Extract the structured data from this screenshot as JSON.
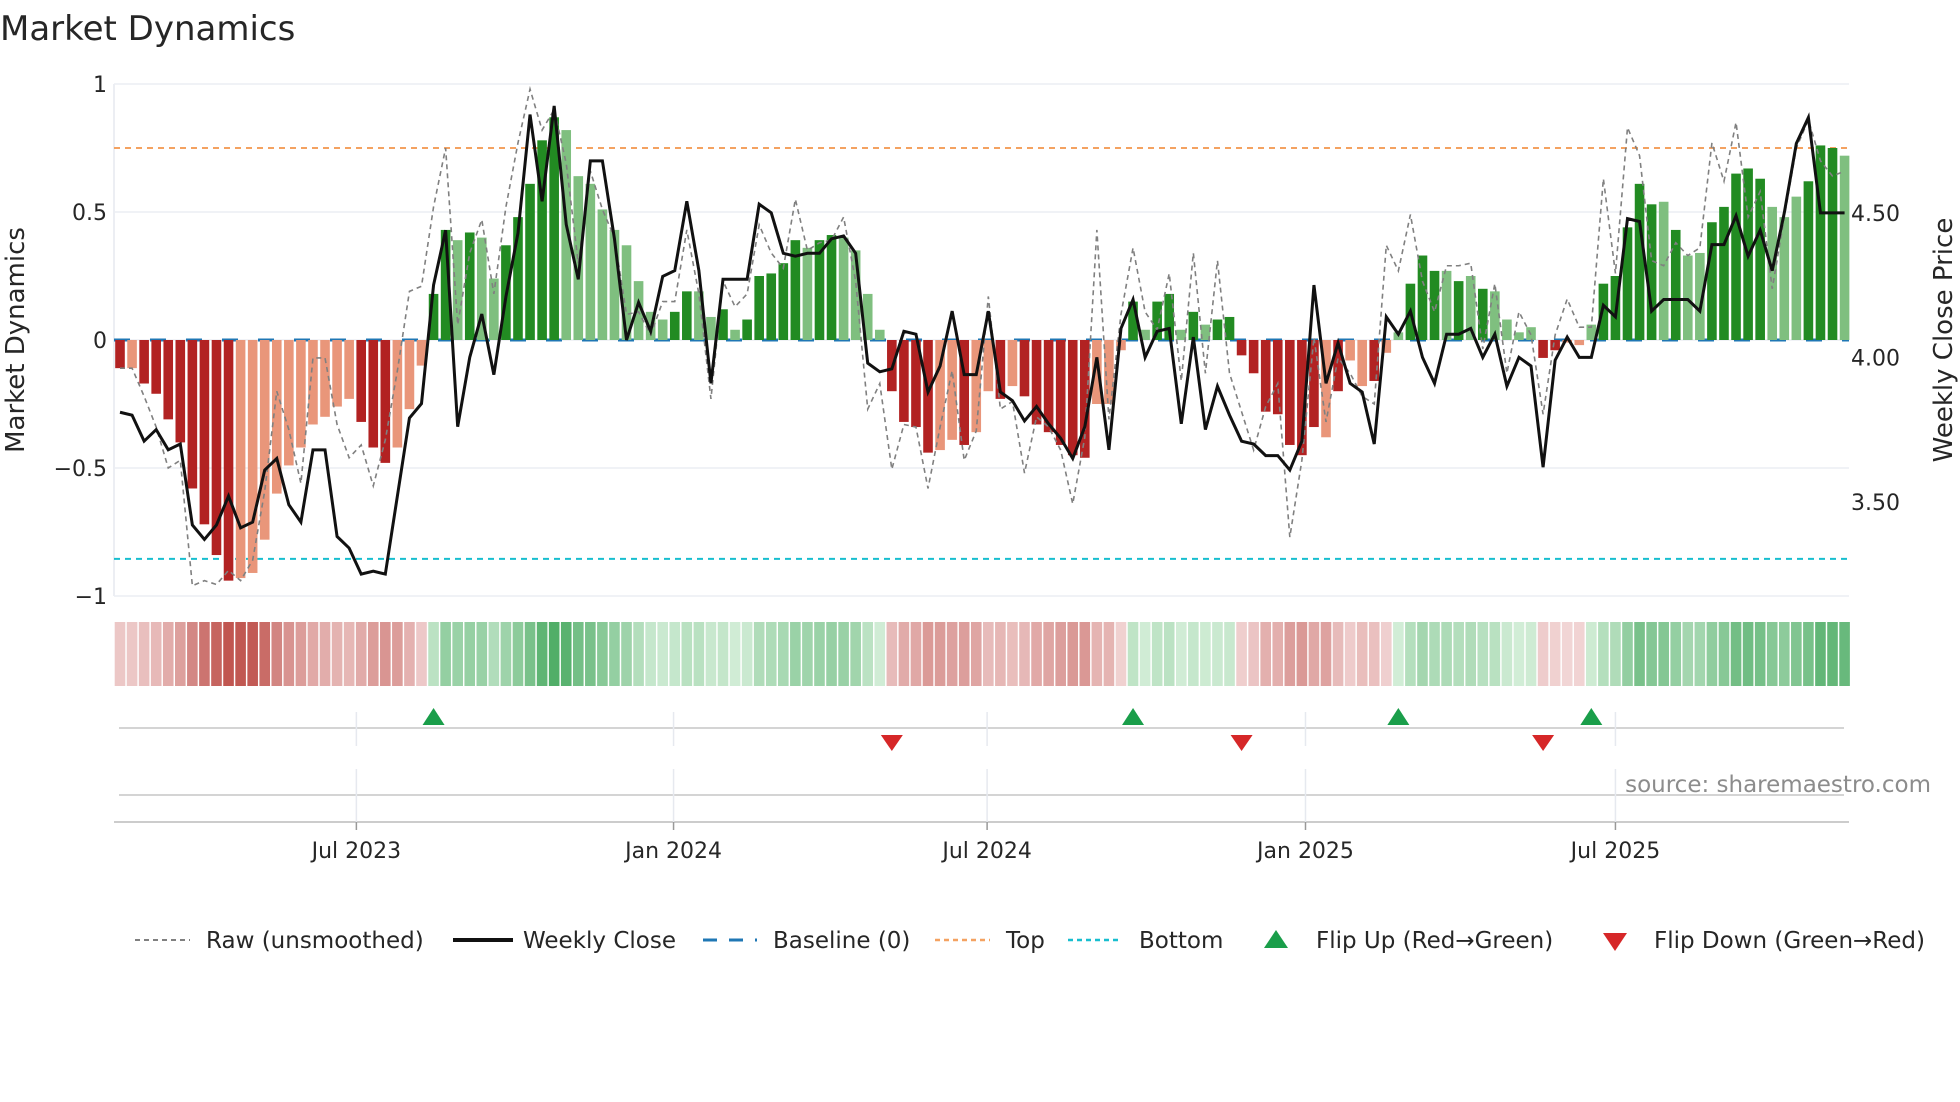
{
  "title": "Market Dynamics",
  "source": "source: sharemaestro.com",
  "colors": {
    "dark_red": "#b22222",
    "light_red": "#e9967a",
    "dark_green": "#228b22",
    "light_green": "#7fbf7f",
    "baseline": "#1f77b4",
    "top": "#f4a261",
    "bottom": "#17becf",
    "raw": "#808080",
    "close": "#111111",
    "flip_up": "#1a9e4a",
    "flip_down": "#d62728"
  },
  "chart_data": {
    "type": "bar",
    "title": "Market Dynamics",
    "ylabel": "Market Dynamics",
    "y2label": "Weekly Close Price",
    "ylim": [
      -1,
      1
    ],
    "y2lim": [
      3.17,
      4.94
    ],
    "yticks": [
      {
        "v": 1,
        "label": "1"
      },
      {
        "v": 0.5,
        "label": "0.5"
      },
      {
        "v": 0,
        "label": "0"
      },
      {
        "v": -0.5,
        "label": "−0.5"
      },
      {
        "v": -1,
        "label": "−1"
      }
    ],
    "y2ticks": [
      {
        "v": 4.5,
        "label": "4.50"
      },
      {
        "v": 4.0,
        "label": "4.00"
      },
      {
        "v": 3.5,
        "label": "3.50"
      }
    ],
    "xticks": [
      {
        "week": 19.6,
        "label": "Jul 2023"
      },
      {
        "week": 45.9,
        "label": "Jan 2024"
      },
      {
        "week": 71.9,
        "label": "Jul 2024"
      },
      {
        "week": 98.3,
        "label": "Jan 2025"
      },
      {
        "week": 124.0,
        "label": "Jul 2025"
      }
    ],
    "grid": true,
    "baseline": 0,
    "top": 0.75,
    "bottom": -0.855,
    "dynamics": [
      -0.11,
      -0.11,
      -0.17,
      -0.21,
      -0.31,
      -0.4,
      -0.58,
      -0.72,
      -0.84,
      -0.94,
      -0.93,
      -0.91,
      -0.78,
      -0.6,
      -0.49,
      -0.42,
      -0.33,
      -0.3,
      -0.26,
      -0.23,
      -0.32,
      -0.42,
      -0.48,
      -0.42,
      -0.27,
      -0.1,
      0.18,
      0.43,
      0.39,
      0.42,
      0.4,
      0.24,
      0.37,
      0.48,
      0.61,
      0.78,
      0.87,
      0.82,
      0.64,
      0.61,
      0.51,
      0.43,
      0.37,
      0.23,
      0.11,
      0.08,
      0.11,
      0.19,
      0.19,
      0.09,
      0.12,
      0.04,
      0.08,
      0.25,
      0.26,
      0.3,
      0.39,
      0.36,
      0.39,
      0.41,
      0.4,
      0.35,
      0.18,
      0.04,
      -0.2,
      -0.32,
      -0.34,
      -0.44,
      -0.43,
      -0.39,
      -0.41,
      -0.36,
      -0.2,
      -0.23,
      -0.18,
      -0.22,
      -0.33,
      -0.36,
      -0.41,
      -0.45,
      -0.46,
      -0.25,
      -0.25,
      -0.04,
      0.15,
      0.04,
      0.15,
      0.18,
      0.04,
      0.11,
      0.06,
      0.08,
      0.09,
      -0.06,
      -0.13,
      -0.28,
      -0.29,
      -0.41,
      -0.45,
      -0.34,
      -0.38,
      -0.2,
      -0.08,
      -0.18,
      -0.16,
      -0.05,
      0.03,
      0.22,
      0.33,
      0.27,
      0.27,
      0.23,
      0.25,
      0.2,
      0.19,
      0.08,
      0.03,
      0.05,
      -0.07,
      -0.04,
      -0.01,
      -0.02,
      0.06,
      0.22,
      0.25,
      0.44,
      0.61,
      0.53,
      0.54,
      0.43,
      0.33,
      0.34,
      0.46,
      0.52,
      0.65,
      0.67,
      0.63,
      0.52,
      0.48,
      0.56,
      0.62,
      0.76,
      0.75,
      0.72
    ],
    "shade": "DLDDDDDDDDLLLLLLLLLLDDDLLLDDLDLLDDDDDLLLLLLLLLDDLLDLDDDDDLDDLLLLDDDDLLDLLDLDDDDDDLLLDLDDLDLDDDDDDDDDLDLLDLLDDDLDLDLLLLDDLLLDDDDDLDLLDDDDDLLLDDDLL",
    "raw": [
      -0.11,
      -0.11,
      -0.22,
      -0.34,
      -0.5,
      -0.47,
      -0.96,
      -0.94,
      -0.955,
      -0.9,
      -0.94,
      -0.86,
      -0.59,
      -0.2,
      -0.35,
      -0.56,
      -0.07,
      -0.07,
      -0.33,
      -0.46,
      -0.41,
      -0.57,
      -0.39,
      -0.12,
      0.19,
      0.21,
      0.52,
      0.75,
      0.06,
      0.34,
      0.47,
      0.18,
      0.52,
      0.77,
      0.98,
      0.82,
      0.9,
      0.69,
      0.3,
      0.66,
      0.51,
      0.4,
      0.1,
      0.11,
      0.02,
      0.15,
      0.15,
      0.43,
      0.18,
      -0.23,
      0.23,
      0.13,
      0.18,
      0.45,
      0.34,
      0.28,
      0.55,
      0.35,
      0.38,
      0.39,
      0.48,
      0.23,
      -0.27,
      -0.17,
      -0.505,
      -0.33,
      -0.34,
      -0.58,
      -0.34,
      -0.12,
      -0.47,
      -0.355,
      0.17,
      -0.27,
      -0.24,
      -0.52,
      -0.3,
      -0.34,
      -0.43,
      -0.64,
      -0.38,
      0.43,
      -0.31,
      0.1,
      0.36,
      0.11,
      0.04,
      0.26,
      -0.16,
      0.34,
      -0.13,
      0.31,
      -0.13,
      -0.28,
      -0.43,
      -0.26,
      -0.17,
      -0.77,
      -0.47,
      0.01,
      -0.32,
      -0.07,
      -0.13,
      -0.22,
      -0.25,
      0.37,
      0.27,
      0.49,
      0.23,
      0.11,
      0.29,
      0.29,
      0.3,
      -0.035,
      0.22,
      -0.13,
      0.11,
      0.02,
      -0.29,
      0.02,
      0.16,
      0.05,
      0.05,
      0.63,
      0.26,
      0.83,
      0.72,
      0.31,
      0.29,
      0.38,
      0.33,
      0.36,
      0.77,
      0.62,
      0.85,
      0.48,
      0.58,
      0.2,
      0.48,
      0.75,
      0.86,
      0.7,
      0.64,
      0.66
    ],
    "close": [
      3.81,
      3.8,
      3.71,
      3.75,
      3.68,
      3.7,
      3.42,
      3.37,
      3.42,
      3.52,
      3.41,
      3.43,
      3.61,
      3.65,
      3.49,
      3.43,
      3.68,
      3.68,
      3.38,
      3.34,
      3.25,
      3.26,
      3.25,
      3.52,
      3.79,
      3.84,
      4.25,
      4.44,
      3.76,
      4.0,
      4.15,
      3.94,
      4.21,
      4.43,
      4.84,
      4.54,
      4.87,
      4.46,
      4.27,
      4.68,
      4.68,
      4.41,
      4.06,
      4.19,
      4.09,
      4.28,
      4.3,
      4.54,
      4.3,
      3.91,
      4.27,
      4.27,
      4.27,
      4.53,
      4.5,
      4.36,
      4.35,
      4.36,
      4.36,
      4.41,
      4.42,
      4.36,
      3.98,
      3.95,
      3.96,
      4.09,
      4.08,
      3.88,
      3.97,
      4.16,
      3.94,
      3.94,
      4.16,
      3.88,
      3.85,
      3.78,
      3.83,
      3.77,
      3.72,
      3.65,
      3.76,
      4.0,
      3.68,
      4.1,
      4.2,
      4.0,
      4.09,
      4.1,
      3.77,
      4.07,
      3.75,
      3.9,
      3.8,
      3.71,
      3.7,
      3.66,
      3.66,
      3.61,
      3.71,
      4.25,
      3.91,
      4.05,
      3.91,
      3.88,
      3.7,
      4.14,
      4.08,
      4.16,
      4.0,
      3.91,
      4.08,
      4.08,
      4.1,
      4.0,
      4.08,
      3.9,
      4.0,
      3.97,
      3.62,
      3.99,
      4.07,
      4.0,
      4.0,
      4.18,
      4.14,
      4.48,
      4.47,
      4.16,
      4.2,
      4.2,
      4.2,
      4.16,
      4.39,
      4.39,
      4.49,
      4.35,
      4.44,
      4.3,
      4.5,
      4.74,
      4.83,
      4.5,
      4.5,
      4.5
    ],
    "flips_up": [
      27,
      85,
      107,
      123
    ],
    "flips_down": [
      65,
      94,
      119
    ],
    "legend": {
      "placement": "bottom",
      "raw": "Raw (unsmoothed)",
      "close": "Weekly Close",
      "baseline": "Baseline (0)",
      "top": "Top",
      "bottom": "Bottom",
      "flip_up": "Flip Up (Red→Green)",
      "flip_down": "Flip Down (Green→Red)"
    }
  }
}
